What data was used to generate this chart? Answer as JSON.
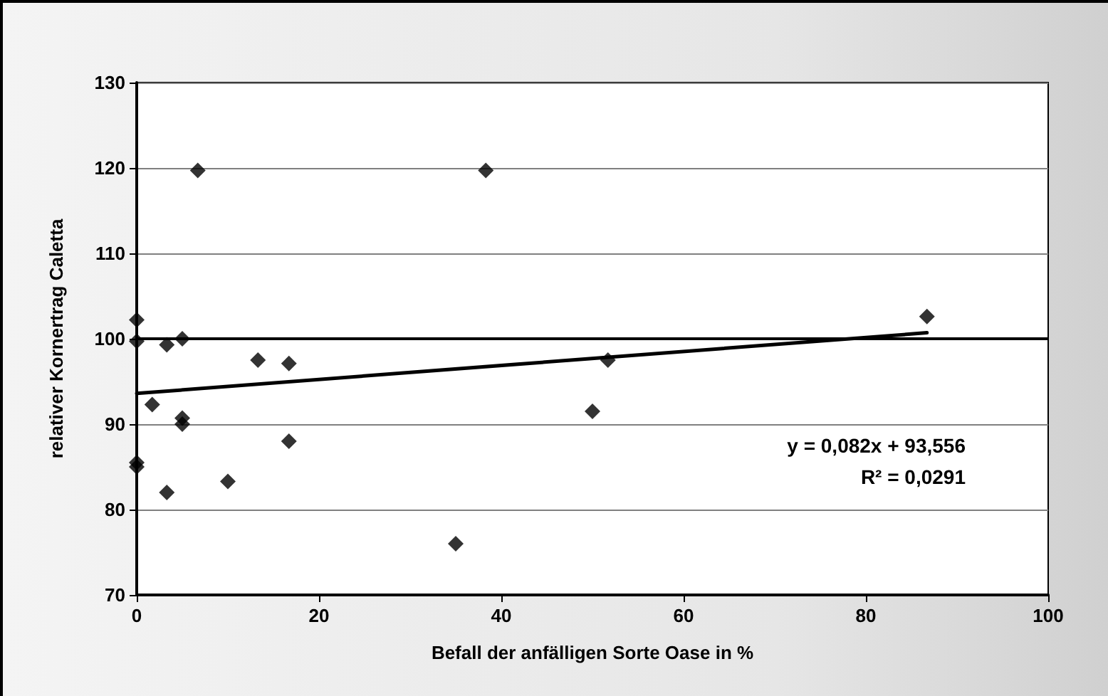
{
  "chart_data": {
    "type": "scatter",
    "xlabel": "Befall der anfälligen Sorte Oase in %",
    "ylabel": "relativer Kornertrag Caletta",
    "xlim": [
      0,
      100
    ],
    "xticks": [
      0,
      20,
      40,
      60,
      80,
      100
    ],
    "ylim": [
      70,
      130
    ],
    "yticks": [
      70,
      80,
      90,
      100,
      110,
      120,
      130
    ],
    "grid": "y",
    "marker": "diamond",
    "series": [
      {
        "color": "#000000",
        "x": [
          0,
          0,
          0,
          0,
          1.7,
          3.3,
          3.3,
          5,
          5,
          5,
          6.7,
          10,
          13.3,
          16.7,
          16.7,
          35,
          38.3,
          50,
          51.7,
          86.7
        ],
        "values": [
          102.2,
          99.7,
          85.5,
          85,
          92.3,
          99.3,
          82,
          100,
          90.7,
          90,
          119.7,
          83.3,
          97.5,
          97.1,
          88,
          76,
          119.7,
          91.5,
          97.5,
          102.6
        ]
      },
      {
        "type": "line",
        "color": "#000000",
        "marker": "none",
        "line_style": "solid",
        "x": [
          0,
          86.7
        ],
        "values": [
          93.6,
          100.7
        ]
      }
    ],
    "ref_lines": [
      {
        "axis": "y",
        "value": 100,
        "color": "#000000",
        "line_style": "solid"
      }
    ],
    "annotations": [
      "y = 0,082x + 93,556",
      "R² = 0,0291"
    ]
  }
}
